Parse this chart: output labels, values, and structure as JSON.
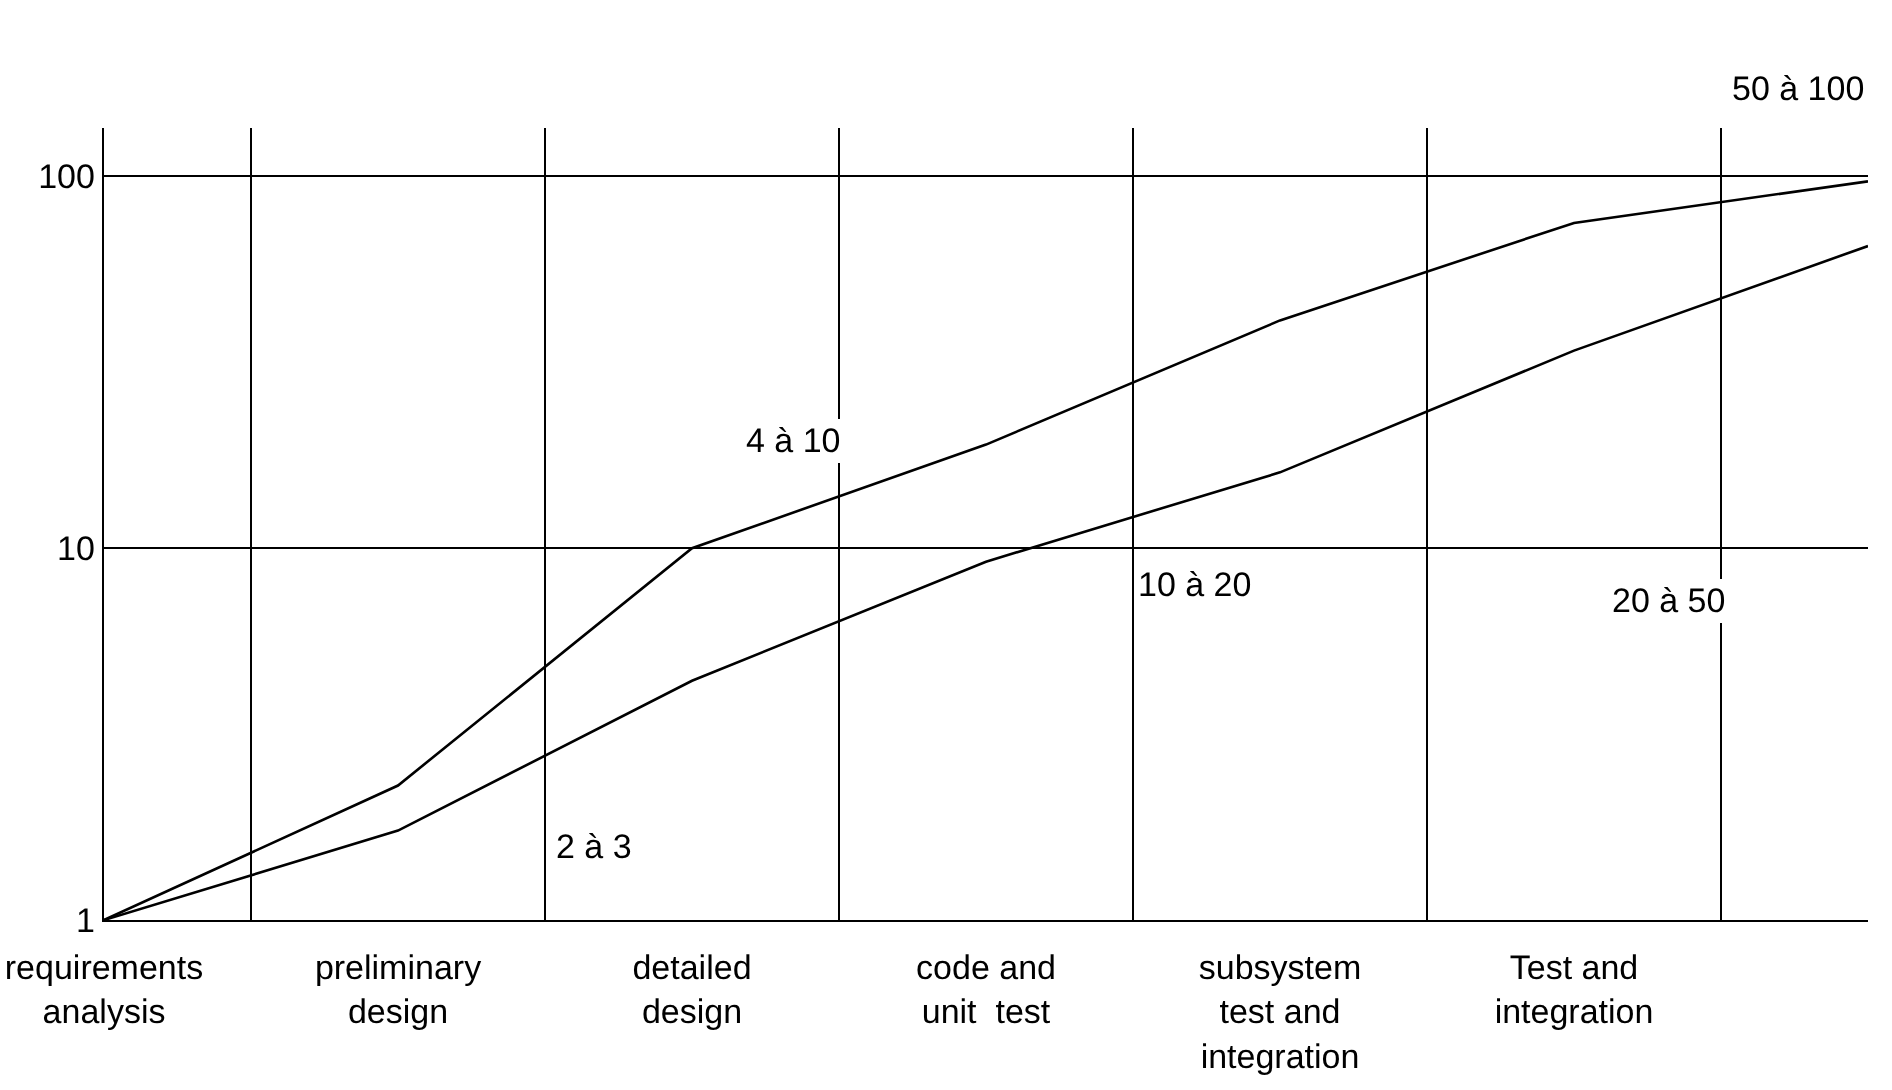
{
  "chart_data": {
    "type": "line",
    "categories": [
      "requirements\nanalysis",
      "preliminary\ndesign",
      "detailed\ndesign",
      "code and\nunit  test",
      "subsystem\ntest and\nintegration",
      "Test and\nintegration",
      null
    ],
    "ylim": [
      1,
      135
    ],
    "yticks": [
      1,
      10,
      100
    ],
    "log": "y",
    "grid": true,
    "marker": "none",
    "line_style": "solid",
    "series": [
      {
        "color": "#000000",
        "values": [
          1,
          2.3,
          10,
          19,
          41,
          75,
          97
        ]
      },
      {
        "color": "#000000",
        "values": [
          1,
          1.74,
          4.4,
          9.2,
          16,
          34,
          65
        ]
      }
    ],
    "annotations": [
      "2 à 3",
      "4 à 10",
      "10 à 20",
      "20 à 50",
      "50 à 100"
    ]
  }
}
